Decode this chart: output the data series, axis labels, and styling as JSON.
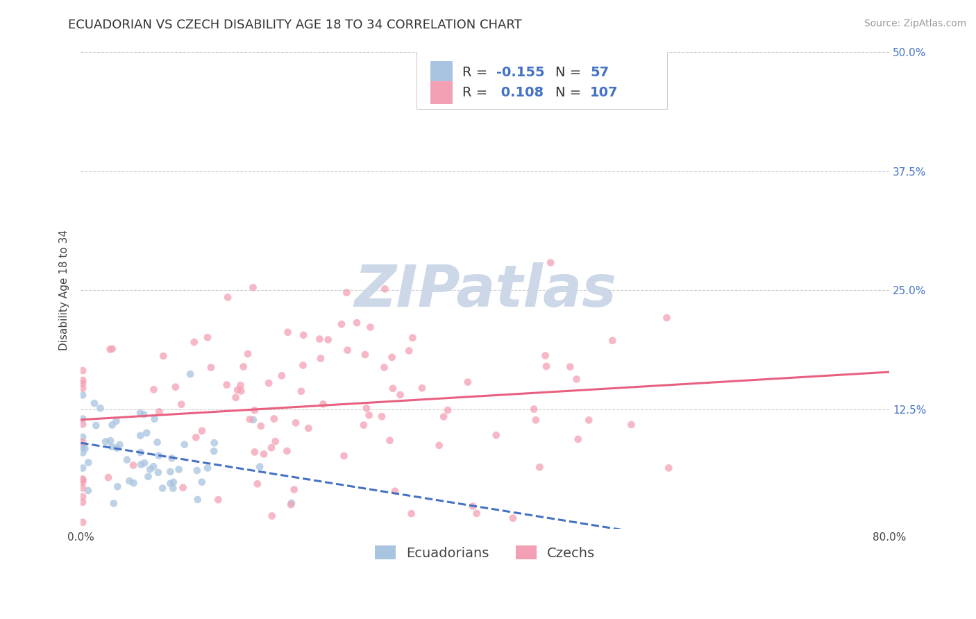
{
  "title": "ECUADORIAN VS CZECH DISABILITY AGE 18 TO 34 CORRELATION CHART",
  "source_text": "Source: ZipAtlas.com",
  "ylabel": "Disability Age 18 to 34",
  "xlim": [
    0.0,
    0.8
  ],
  "ylim": [
    0.0,
    0.5
  ],
  "background_color": "#ffffff",
  "grid_color": "#cccccc",
  "watermark_text": "ZIPatlas",
  "watermark_color": "#ccd8e8",
  "ecuadorian_color": "#a8c4e0",
  "czech_color": "#f4a0b4",
  "ecuadorian_line_color": "#4472c4",
  "czech_line_color": "#e86080",
  "r_value_color": "#4472c4",
  "ecuadorian_r": -0.155,
  "czech_r": 0.108,
  "ecuadorian_n": 57,
  "czech_n": 107,
  "title_fontsize": 13,
  "axis_label_fontsize": 11,
  "tick_fontsize": 11,
  "legend_fontsize": 14,
  "source_fontsize": 10
}
